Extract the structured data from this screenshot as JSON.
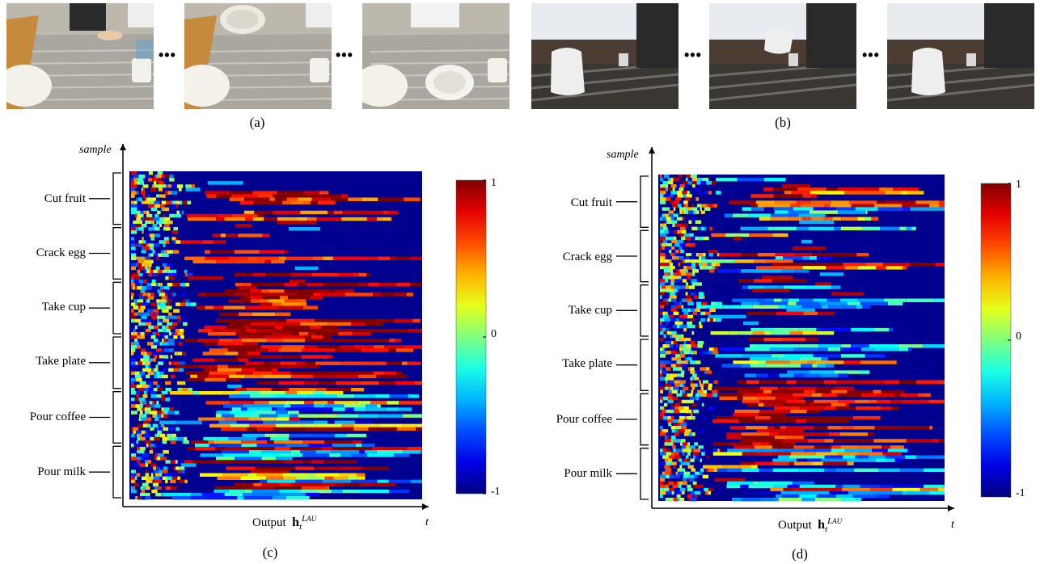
{
  "panel_labels": {
    "a": "(a)",
    "b": "(b)",
    "c": "(c)",
    "d": "(d)"
  },
  "ellipsis": "•••",
  "photos": {
    "a": [
      {
        "icon": "hand-on-table-photo"
      },
      {
        "icon": "lifting-plate-photo"
      },
      {
        "icon": "placing-plate-photo"
      }
    ],
    "b": [
      {
        "icon": "kettle-on-table-photo"
      },
      {
        "icon": "pouring-coffee-photo"
      },
      {
        "icon": "kettle-returned-photo"
      }
    ]
  },
  "chart_data": [
    {
      "type": "heatmap",
      "panel": "c",
      "ylabel": "sample",
      "xlabel_prefix": "Output",
      "xlabel_symbol": "h",
      "xlabel_sub": "t",
      "xlabel_sup": "L",
      "xlabel_sup_sub": "AU",
      "x_axis_end": "t",
      "categories": [
        "Cut fruit",
        "Crack egg",
        "Take cup",
        "Take plate",
        "Pour coffee",
        "Pour milk"
      ],
      "colorbar": {
        "ticks": [
          "1",
          "0",
          "-1"
        ],
        "range": [
          -1,
          1
        ],
        "colormap": "jet"
      }
    },
    {
      "type": "heatmap",
      "panel": "d",
      "ylabel": "sample",
      "xlabel_prefix": "Output",
      "xlabel_symbol": "h",
      "xlabel_sub": "t",
      "xlabel_sup": "L",
      "xlabel_sup_sub": "AU",
      "x_axis_end": "t",
      "categories": [
        "Cut fruit",
        "Crack egg",
        "Take cup",
        "Take plate",
        "Pour coffee",
        "Pour milk"
      ],
      "colorbar": {
        "ticks": [
          "1",
          "0",
          "-1"
        ],
        "range": [
          -1,
          1
        ],
        "colormap": "jet"
      }
    }
  ]
}
